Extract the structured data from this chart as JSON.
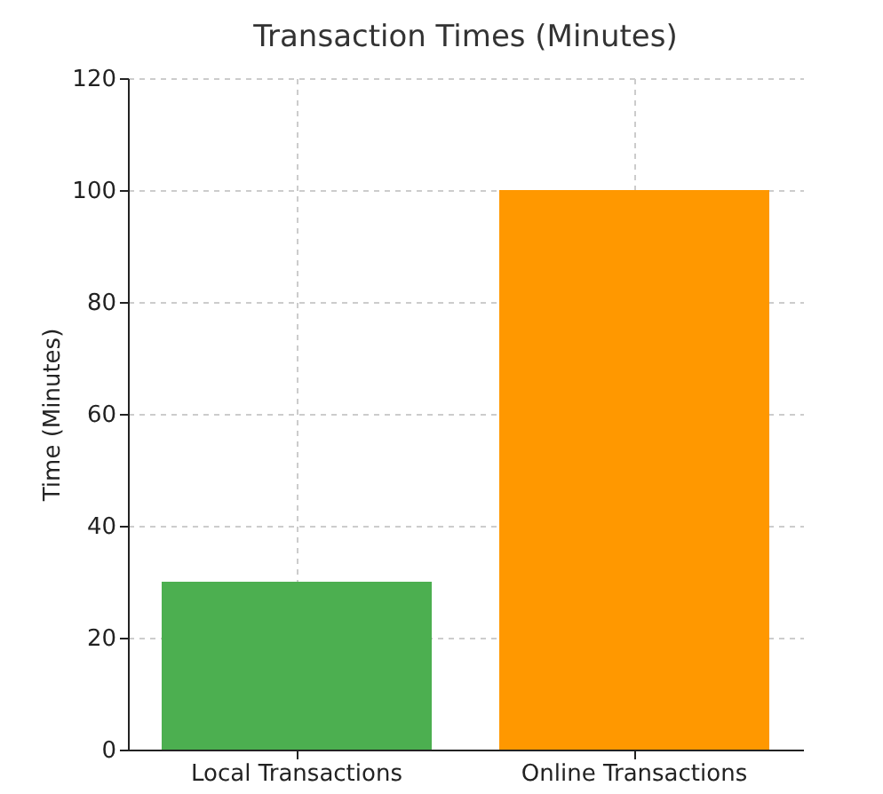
{
  "chart_data": {
    "type": "bar",
    "title": "Transaction Times (Minutes)",
    "ylabel": "Time (Minutes)",
    "categories": [
      "Local Transactions",
      "Online Transactions"
    ],
    "values": [
      30,
      100
    ],
    "colors": [
      "#4caf50",
      "#ff9800"
    ],
    "ylim": [
      0,
      120
    ],
    "yticks": [
      0,
      20,
      40,
      60,
      80,
      100,
      120
    ],
    "grid": true
  }
}
